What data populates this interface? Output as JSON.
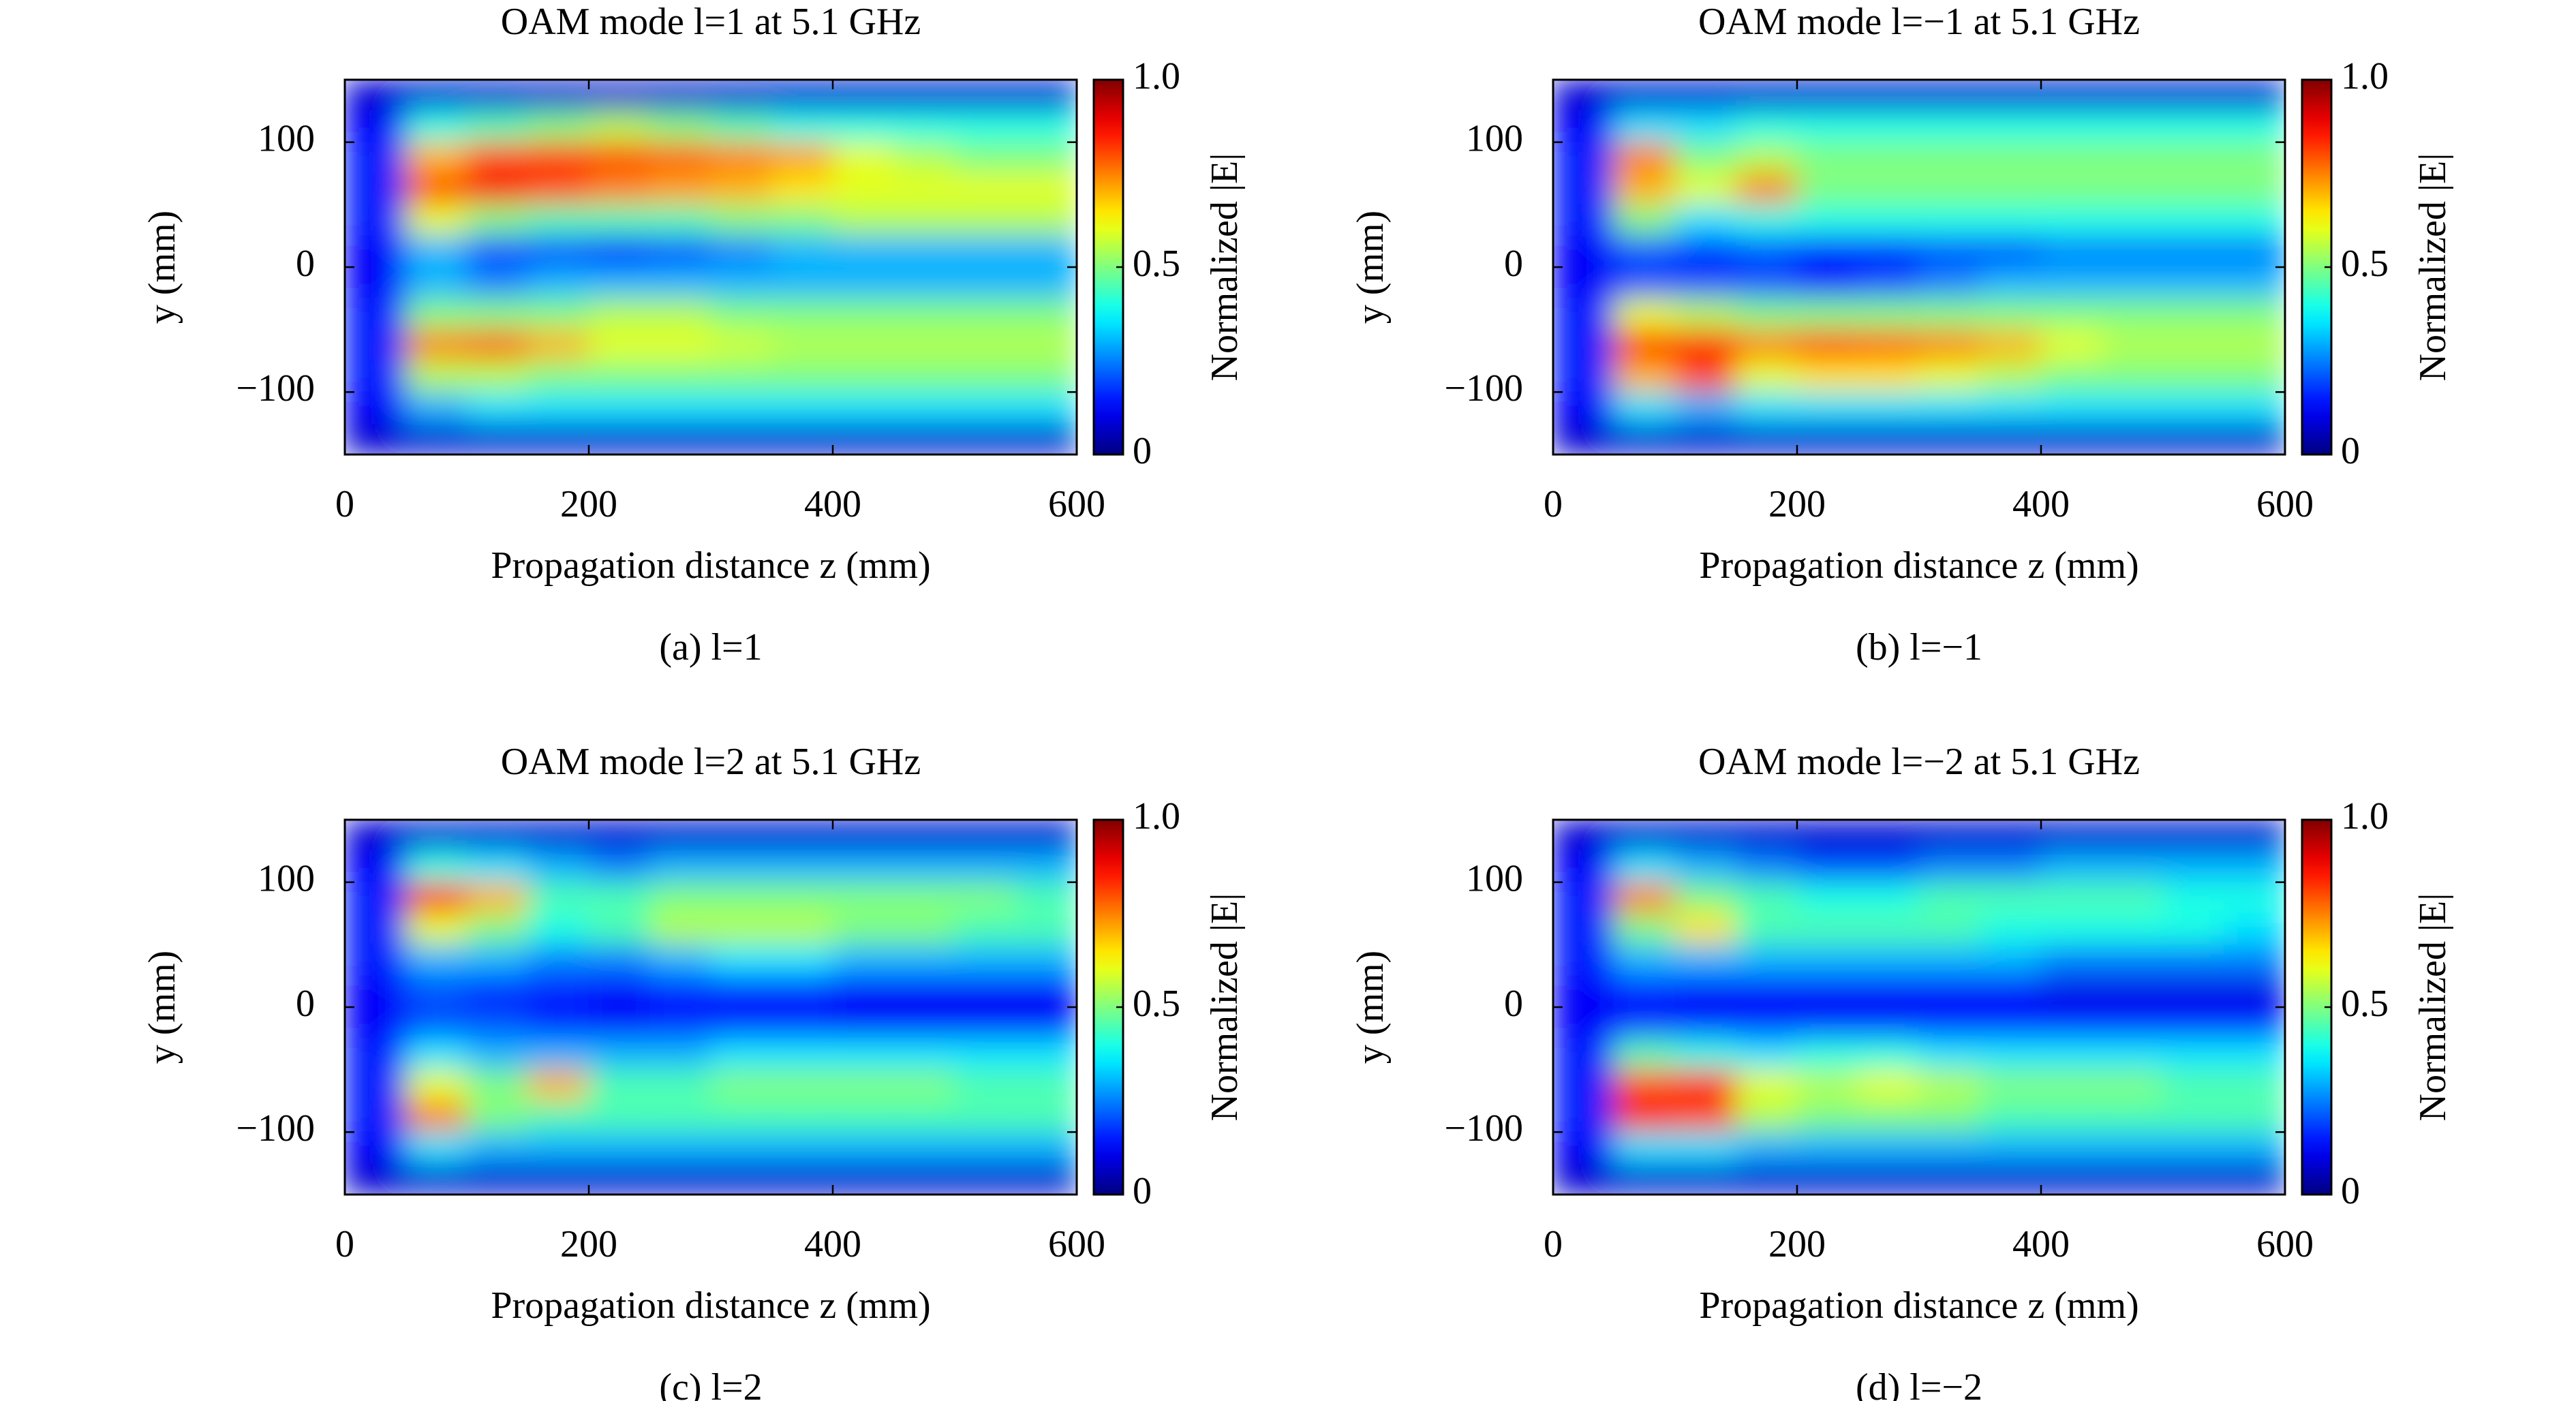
{
  "chart_data": [
    {
      "type": "heatmap",
      "title": "OAM mode l=1 at 5.1 GHz",
      "caption": "(a) l=1",
      "xlabel": "Propagation distance z (mm)",
      "ylabel": "y (mm)",
      "colorbar_label": "Normalized |E|",
      "colormap": "jet",
      "x": [
        25,
        75,
        125,
        175,
        225,
        275,
        325,
        375,
        425,
        475,
        525,
        575
      ],
      "y": [
        137.5,
        112.5,
        87.5,
        62.5,
        37.5,
        12.5,
        -12.5,
        -37.5,
        -62.5,
        -87.5,
        -112.5,
        -137.5
      ],
      "values": [
        [
          0.08,
          0.08,
          0.08,
          0.08,
          0.08,
          0.08,
          0.08,
          0.08,
          0.08,
          0.08,
          0.08,
          0.08
        ],
        [
          0.12,
          0.4,
          0.45,
          0.5,
          0.55,
          0.5,
          0.45,
          0.4,
          0.4,
          0.4,
          0.4,
          0.4
        ],
        [
          0.15,
          0.7,
          0.8,
          0.82,
          0.8,
          0.78,
          0.75,
          0.72,
          0.6,
          0.55,
          0.5,
          0.5
        ],
        [
          0.15,
          0.8,
          0.88,
          0.8,
          0.75,
          0.72,
          0.7,
          0.65,
          0.6,
          0.6,
          0.6,
          0.6
        ],
        [
          0.15,
          0.6,
          0.5,
          0.45,
          0.45,
          0.45,
          0.5,
          0.5,
          0.55,
          0.55,
          0.55,
          0.55
        ],
        [
          0.12,
          0.3,
          0.2,
          0.2,
          0.15,
          0.2,
          0.25,
          0.3,
          0.3,
          0.3,
          0.3,
          0.3
        ],
        [
          0.12,
          0.3,
          0.25,
          0.3,
          0.3,
          0.3,
          0.3,
          0.3,
          0.3,
          0.3,
          0.3,
          0.3
        ],
        [
          0.15,
          0.5,
          0.5,
          0.5,
          0.55,
          0.55,
          0.5,
          0.5,
          0.5,
          0.5,
          0.5,
          0.5
        ],
        [
          0.15,
          0.75,
          0.78,
          0.7,
          0.6,
          0.6,
          0.58,
          0.55,
          0.55,
          0.55,
          0.55,
          0.55
        ],
        [
          0.15,
          0.55,
          0.55,
          0.5,
          0.5,
          0.5,
          0.5,
          0.5,
          0.5,
          0.5,
          0.5,
          0.5
        ],
        [
          0.12,
          0.3,
          0.35,
          0.35,
          0.35,
          0.35,
          0.35,
          0.35,
          0.35,
          0.35,
          0.35,
          0.35
        ],
        [
          0.08,
          0.08,
          0.08,
          0.08,
          0.08,
          0.08,
          0.08,
          0.08,
          0.08,
          0.08,
          0.08,
          0.08
        ]
      ],
      "xlim": [
        0,
        600
      ],
      "ylim": [
        -150,
        150
      ],
      "zlim": [
        0,
        1
      ],
      "xticks": [
        0,
        200,
        400,
        600
      ],
      "yticks": [
        {
          "value": -100,
          "label": "−100"
        },
        0,
        100
      ],
      "zticks": [
        0,
        0.5,
        {
          "value": 1,
          "label": "1.0"
        }
      ]
    },
    {
      "type": "heatmap",
      "title": "OAM mode l=−1 at 5.1 GHz",
      "caption": "(b) l=−1",
      "xlabel": "Propagation distance z (mm)",
      "ylabel": "y (mm)",
      "colorbar_label": "Normalized |E|",
      "colormap": "jet",
      "x": [
        25,
        75,
        125,
        175,
        225,
        275,
        325,
        375,
        425,
        475,
        525,
        575
      ],
      "y": [
        137.5,
        112.5,
        87.5,
        62.5,
        37.5,
        12.5,
        -12.5,
        -37.5,
        -62.5,
        -87.5,
        -112.5,
        -137.5
      ],
      "values": [
        [
          0.08,
          0.08,
          0.08,
          0.08,
          0.08,
          0.08,
          0.08,
          0.08,
          0.08,
          0.08,
          0.08,
          0.08
        ],
        [
          0.12,
          0.35,
          0.35,
          0.4,
          0.4,
          0.4,
          0.4,
          0.4,
          0.4,
          0.4,
          0.4,
          0.4
        ],
        [
          0.15,
          0.75,
          0.5,
          0.55,
          0.5,
          0.5,
          0.5,
          0.5,
          0.5,
          0.5,
          0.5,
          0.5
        ],
        [
          0.15,
          0.7,
          0.6,
          0.75,
          0.5,
          0.5,
          0.5,
          0.5,
          0.5,
          0.5,
          0.5,
          0.5
        ],
        [
          0.15,
          0.5,
          0.35,
          0.4,
          0.4,
          0.4,
          0.4,
          0.4,
          0.4,
          0.4,
          0.4,
          0.4
        ],
        [
          0.12,
          0.2,
          0.15,
          0.2,
          0.15,
          0.15,
          0.2,
          0.2,
          0.25,
          0.25,
          0.25,
          0.25
        ],
        [
          0.12,
          0.2,
          0.2,
          0.2,
          0.15,
          0.2,
          0.25,
          0.3,
          0.3,
          0.3,
          0.3,
          0.3
        ],
        [
          0.15,
          0.6,
          0.55,
          0.5,
          0.5,
          0.5,
          0.5,
          0.5,
          0.5,
          0.5,
          0.5,
          0.5
        ],
        [
          0.15,
          0.82,
          0.85,
          0.75,
          0.8,
          0.78,
          0.75,
          0.7,
          0.6,
          0.55,
          0.55,
          0.55
        ],
        [
          0.15,
          0.7,
          0.8,
          0.6,
          0.65,
          0.65,
          0.6,
          0.55,
          0.5,
          0.5,
          0.5,
          0.5
        ],
        [
          0.12,
          0.35,
          0.3,
          0.35,
          0.35,
          0.35,
          0.35,
          0.35,
          0.35,
          0.35,
          0.35,
          0.35
        ],
        [
          0.08,
          0.08,
          0.08,
          0.08,
          0.08,
          0.08,
          0.08,
          0.08,
          0.08,
          0.08,
          0.08,
          0.08
        ]
      ],
      "xlim": [
        0,
        600
      ],
      "ylim": [
        -150,
        150
      ],
      "zlim": [
        0,
        1
      ],
      "xticks": [
        0,
        200,
        400,
        600
      ],
      "yticks": [
        {
          "value": -100,
          "label": "−100"
        },
        0,
        100
      ],
      "zticks": [
        0,
        0.5,
        {
          "value": 1,
          "label": "1.0"
        }
      ]
    },
    {
      "type": "heatmap",
      "title": "OAM mode l=2 at 5.1 GHz",
      "caption": "(c) l=2",
      "xlabel": "Propagation distance z (mm)",
      "ylabel": "y (mm)",
      "colorbar_label": "Normalized |E|",
      "colormap": "jet",
      "x": [
        25,
        75,
        125,
        175,
        225,
        275,
        325,
        375,
        425,
        475,
        525,
        575
      ],
      "y": [
        137.5,
        112.5,
        87.5,
        62.5,
        37.5,
        12.5,
        -12.5,
        -37.5,
        -62.5,
        -87.5,
        -112.5,
        -137.5
      ],
      "values": [
        [
          0.08,
          0.08,
          0.08,
          0.08,
          0.08,
          0.08,
          0.08,
          0.08,
          0.08,
          0.08,
          0.08,
          0.08
        ],
        [
          0.12,
          0.4,
          0.35,
          0.3,
          0.25,
          0.3,
          0.3,
          0.3,
          0.3,
          0.3,
          0.3,
          0.3
        ],
        [
          0.15,
          0.85,
          0.7,
          0.45,
          0.45,
          0.5,
          0.5,
          0.5,
          0.5,
          0.5,
          0.5,
          0.45
        ],
        [
          0.15,
          0.6,
          0.5,
          0.4,
          0.45,
          0.55,
          0.55,
          0.55,
          0.5,
          0.5,
          0.45,
          0.45
        ],
        [
          0.15,
          0.3,
          0.3,
          0.25,
          0.25,
          0.3,
          0.35,
          0.35,
          0.3,
          0.3,
          0.3,
          0.3
        ],
        [
          0.12,
          0.2,
          0.15,
          0.15,
          0.12,
          0.15,
          0.15,
          0.15,
          0.12,
          0.12,
          0.12,
          0.12
        ],
        [
          0.12,
          0.2,
          0.2,
          0.15,
          0.12,
          0.15,
          0.15,
          0.15,
          0.12,
          0.12,
          0.12,
          0.12
        ],
        [
          0.15,
          0.35,
          0.3,
          0.3,
          0.3,
          0.3,
          0.35,
          0.35,
          0.35,
          0.35,
          0.35,
          0.35
        ],
        [
          0.15,
          0.6,
          0.5,
          0.7,
          0.45,
          0.45,
          0.5,
          0.5,
          0.5,
          0.5,
          0.45,
          0.45
        ],
        [
          0.15,
          0.75,
          0.5,
          0.45,
          0.45,
          0.45,
          0.45,
          0.45,
          0.45,
          0.45,
          0.45,
          0.45
        ],
        [
          0.12,
          0.35,
          0.3,
          0.3,
          0.3,
          0.3,
          0.3,
          0.3,
          0.3,
          0.3,
          0.3,
          0.3
        ],
        [
          0.08,
          0.08,
          0.08,
          0.08,
          0.08,
          0.08,
          0.08,
          0.08,
          0.08,
          0.08,
          0.08,
          0.08
        ]
      ],
      "xlim": [
        0,
        600
      ],
      "ylim": [
        -150,
        150
      ],
      "zlim": [
        0,
        1
      ],
      "xticks": [
        0,
        200,
        400,
        600
      ],
      "yticks": [
        {
          "value": -100,
          "label": "−100"
        },
        0,
        100
      ],
      "zticks": [
        0,
        0.5,
        {
          "value": 1,
          "label": "1.0"
        }
      ]
    },
    {
      "type": "heatmap",
      "title": "OAM mode l=−2 at 5.1 GHz",
      "caption": "(d) l=−2",
      "xlabel": "Propagation distance z (mm)",
      "ylabel": "y (mm)",
      "colorbar_label": "Normalized |E|",
      "colormap": "jet",
      "x": [
        25,
        75,
        125,
        175,
        225,
        275,
        325,
        375,
        425,
        475,
        525,
        575
      ],
      "y": [
        137.5,
        112.5,
        87.5,
        62.5,
        37.5,
        12.5,
        -12.5,
        -37.5,
        -62.5,
        -87.5,
        -112.5,
        -137.5
      ],
      "values": [
        [
          0.08,
          0.08,
          0.08,
          0.08,
          0.08,
          0.08,
          0.08,
          0.08,
          0.08,
          0.08,
          0.08,
          0.08
        ],
        [
          0.12,
          0.35,
          0.3,
          0.25,
          0.2,
          0.2,
          0.25,
          0.25,
          0.3,
          0.3,
          0.3,
          0.3
        ],
        [
          0.15,
          0.75,
          0.5,
          0.45,
          0.4,
          0.4,
          0.45,
          0.45,
          0.45,
          0.45,
          0.4,
          0.4
        ],
        [
          0.15,
          0.5,
          0.65,
          0.45,
          0.45,
          0.45,
          0.45,
          0.4,
          0.4,
          0.4,
          0.4,
          0.35
        ],
        [
          0.15,
          0.3,
          0.3,
          0.3,
          0.3,
          0.3,
          0.3,
          0.3,
          0.25,
          0.25,
          0.25,
          0.25
        ],
        [
          0.12,
          0.15,
          0.12,
          0.12,
          0.12,
          0.12,
          0.12,
          0.12,
          0.1,
          0.1,
          0.1,
          0.1
        ],
        [
          0.12,
          0.15,
          0.15,
          0.15,
          0.15,
          0.15,
          0.15,
          0.15,
          0.15,
          0.15,
          0.15,
          0.15
        ],
        [
          0.15,
          0.45,
          0.4,
          0.35,
          0.4,
          0.4,
          0.35,
          0.35,
          0.35,
          0.35,
          0.35,
          0.35
        ],
        [
          0.15,
          0.8,
          0.85,
          0.6,
          0.55,
          0.6,
          0.55,
          0.5,
          0.5,
          0.5,
          0.45,
          0.45
        ],
        [
          0.15,
          0.85,
          0.8,
          0.55,
          0.5,
          0.5,
          0.5,
          0.45,
          0.45,
          0.45,
          0.45,
          0.45
        ],
        [
          0.12,
          0.35,
          0.35,
          0.3,
          0.3,
          0.3,
          0.3,
          0.3,
          0.3,
          0.3,
          0.3,
          0.3
        ],
        [
          0.08,
          0.08,
          0.08,
          0.08,
          0.08,
          0.08,
          0.08,
          0.08,
          0.08,
          0.08,
          0.08,
          0.08
        ]
      ],
      "xlim": [
        0,
        600
      ],
      "ylim": [
        -150,
        150
      ],
      "zlim": [
        0,
        1
      ],
      "xticks": [
        0,
        200,
        400,
        600
      ],
      "yticks": [
        {
          "value": -100,
          "label": "−100"
        },
        0,
        100
      ],
      "zticks": [
        0,
        0.5,
        {
          "value": 1,
          "label": "1.0"
        }
      ]
    }
  ]
}
